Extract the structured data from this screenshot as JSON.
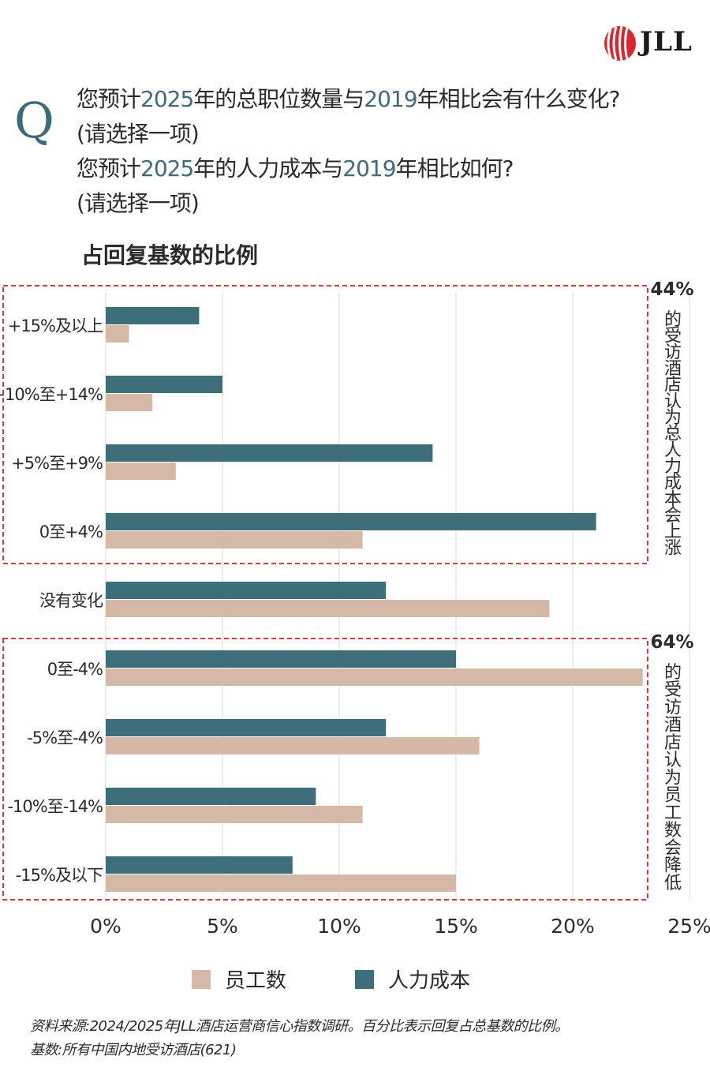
{
  "logo": {
    "text": "JLL"
  },
  "question": {
    "marker": "Q",
    "lines": [
      [
        {
          "t": "您预计"
        },
        {
          "t": "2025",
          "yr": true
        },
        {
          "t": "年的总职位数量与"
        },
        {
          "t": "2019",
          "yr": true
        },
        {
          "t": "年相比会有什么变化?"
        }
      ],
      [
        {
          "t": "(请选择一项)"
        }
      ],
      [
        {
          "t": "您预计"
        },
        {
          "t": "2025",
          "yr": true
        },
        {
          "t": "年的人力成本与"
        },
        {
          "t": "2019",
          "yr": true
        },
        {
          "t": "年相比如何?"
        }
      ],
      [
        {
          "t": "(请选择一项)"
        }
      ]
    ]
  },
  "colors": {
    "labor_cost": "#3f6e7b",
    "employees": "#d5b9a6",
    "accent": "#3d6b78",
    "dashed_box": "#d9363e",
    "grid": "#d6dde2"
  },
  "chart_data": {
    "type": "bar",
    "orientation": "horizontal",
    "title": "占回复基数的比例",
    "categories": [
      "+15%及以上",
      "+10%至+14%",
      "+5%至+9%",
      "0至+4%",
      "没有变化",
      "0至-4%",
      "-5%至-4%",
      "-10%至-14%",
      "-15%及以下"
    ],
    "series": [
      {
        "name": "人力成本",
        "values": [
          4,
          5,
          14,
          21,
          12,
          15,
          12,
          9,
          8
        ]
      },
      {
        "name": "员工数",
        "values": [
          1,
          2,
          3,
          11,
          19,
          23,
          16,
          11,
          15
        ]
      }
    ],
    "xlim": [
      0,
      25
    ],
    "xticks": [
      "0%",
      "5%",
      "10%",
      "15%",
      "20%",
      "25%"
    ],
    "grid": true,
    "annotations": [
      {
        "pct": "44%",
        "text": "的受访酒店认为总人力成本会上涨",
        "categories": [
          0,
          3
        ]
      },
      {
        "pct": "64%",
        "text": "的受访酒店认为员工数会降低",
        "categories": [
          5,
          8
        ]
      }
    ]
  },
  "legend": [
    {
      "name": "员工数",
      "color": "#d5b9a6"
    },
    {
      "name": "人力成本",
      "color": "#3f6e7b"
    }
  ],
  "source": {
    "line1": "资料来源:2024/2025年JLL酒店运营商信心指数调研。百分比表示回复占总基数的比例。",
    "line2": "基数:所有中国内地受访酒店(621)"
  }
}
